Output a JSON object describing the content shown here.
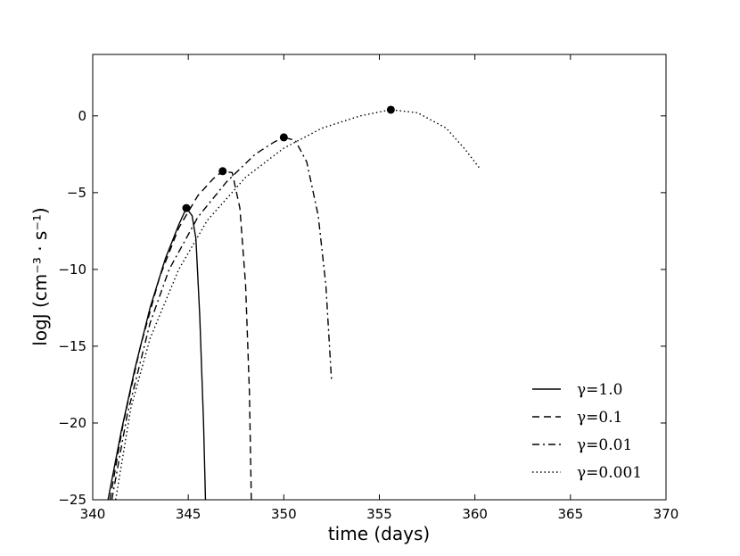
{
  "chart_data": {
    "type": "line",
    "title": "",
    "xlabel": "time (days)",
    "ylabel": "logJ (cm⁻³ · s⁻¹)",
    "xlim": [
      340,
      370
    ],
    "ylim": [
      -25,
      4
    ],
    "xticks": [
      340,
      345,
      350,
      355,
      360,
      365,
      370
    ],
    "yticks": [
      0,
      -5,
      -10,
      -15,
      -20,
      -25
    ],
    "grid": false,
    "legend_position": "lower-right",
    "series": [
      {
        "name": "γ=1.0",
        "style": "solid",
        "points": [
          [
            340.8,
            -25
          ],
          [
            341.5,
            -20.5
          ],
          [
            342.2,
            -16.5
          ],
          [
            343.0,
            -12.5
          ],
          [
            343.8,
            -9.3
          ],
          [
            344.5,
            -7.1
          ],
          [
            344.9,
            -6.0
          ],
          [
            345.2,
            -6.5
          ],
          [
            345.4,
            -8.0
          ],
          [
            345.6,
            -13.0
          ],
          [
            345.8,
            -20.0
          ],
          [
            345.9,
            -25
          ]
        ],
        "peak": [
          344.9,
          -6.0
        ]
      },
      {
        "name": "γ=0.1",
        "style": "dashed",
        "points": [
          [
            340.9,
            -25
          ],
          [
            341.6,
            -20.0
          ],
          [
            342.5,
            -15.0
          ],
          [
            343.5,
            -10.5
          ],
          [
            344.5,
            -7.3
          ],
          [
            345.5,
            -5.2
          ],
          [
            346.3,
            -4.1
          ],
          [
            346.8,
            -3.6
          ],
          [
            347.3,
            -3.7
          ],
          [
            347.7,
            -6.0
          ],
          [
            348.0,
            -11.0
          ],
          [
            348.2,
            -18.0
          ],
          [
            348.3,
            -25
          ]
        ],
        "peak": [
          346.8,
          -3.6
        ]
      },
      {
        "name": "γ=0.01",
        "style": "dashdot",
        "points": [
          [
            341.0,
            -25
          ],
          [
            341.8,
            -19.5
          ],
          [
            343.0,
            -13.5
          ],
          [
            344.0,
            -10.0
          ],
          [
            345.5,
            -6.6
          ],
          [
            347.0,
            -4.3
          ],
          [
            348.5,
            -2.5
          ],
          [
            349.5,
            -1.7
          ],
          [
            350.0,
            -1.4
          ],
          [
            350.6,
            -1.6
          ],
          [
            351.2,
            -3.0
          ],
          [
            351.8,
            -6.5
          ],
          [
            352.2,
            -11.0
          ],
          [
            352.5,
            -17.3
          ]
        ],
        "peak": [
          350.0,
          -1.4
        ]
      },
      {
        "name": "γ=0.001",
        "style": "dotted",
        "points": [
          [
            341.2,
            -25
          ],
          [
            342.0,
            -19.0
          ],
          [
            343.0,
            -14.5
          ],
          [
            344.5,
            -10.0
          ],
          [
            346.0,
            -6.8
          ],
          [
            348.0,
            -4.0
          ],
          [
            350.0,
            -2.1
          ],
          [
            352.0,
            -0.8
          ],
          [
            354.0,
            0.0
          ],
          [
            355.6,
            0.4
          ],
          [
            357.0,
            0.2
          ],
          [
            358.5,
            -0.8
          ],
          [
            359.5,
            -2.2
          ],
          [
            360.3,
            -3.5
          ]
        ],
        "peak": [
          355.6,
          0.4
        ]
      }
    ]
  }
}
